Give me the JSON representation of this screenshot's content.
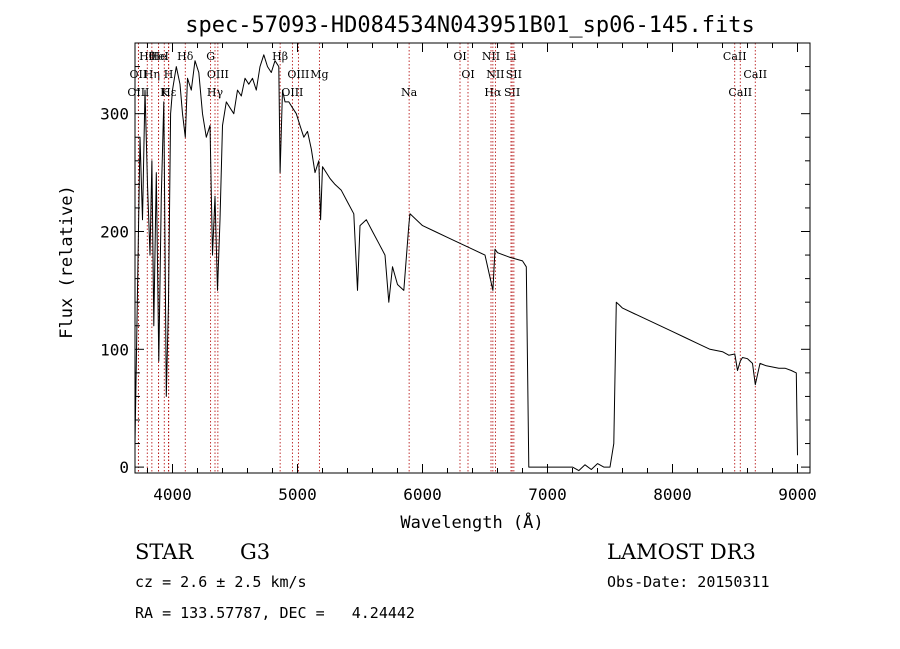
{
  "chart_data": {
    "type": "line",
    "title": "spec-57093-HD084534N043951B01_sp06-145.fits",
    "xlabel": "Wavelength (Å)",
    "ylabel": "Flux (relative)",
    "xlim": [
      3700,
      9100
    ],
    "ylim": [
      -5,
      360
    ],
    "x_ticks": [
      4000,
      5000,
      6000,
      7000,
      8000,
      9000
    ],
    "y_ticks": [
      0,
      100,
      200,
      300
    ],
    "colors": {
      "spectrum": "#000000",
      "line_markers": "#b00000",
      "axes": "#000000"
    },
    "spectrum": {
      "x": [
        3700,
        3720,
        3740,
        3760,
        3780,
        3800,
        3820,
        3835,
        3850,
        3870,
        3890,
        3910,
        3930,
        3950,
        3968,
        3985,
        4000,
        4030,
        4060,
        4080,
        4102,
        4120,
        4150,
        4180,
        4210,
        4240,
        4270,
        4300,
        4320,
        4340,
        4360,
        4380,
        4400,
        4430,
        4460,
        4490,
        4520,
        4550,
        4580,
        4610,
        4640,
        4670,
        4700,
        4730,
        4760,
        4790,
        4820,
        4850,
        4861,
        4880,
        4900,
        4930,
        4960,
        4990,
        5020,
        5050,
        5080,
        5110,
        5140,
        5170,
        5185,
        5200,
        5230,
        5260,
        5300,
        5350,
        5400,
        5450,
        5480,
        5500,
        5550,
        5600,
        5650,
        5700,
        5730,
        5760,
        5800,
        5850,
        5890,
        5900,
        5950,
        6000,
        6100,
        6200,
        6300,
        6400,
        6500,
        6563,
        6580,
        6600,
        6700,
        6800,
        6830,
        6850,
        6900,
        7000,
        7100,
        7200,
        7250,
        7300,
        7350,
        7400,
        7450,
        7500,
        7530,
        7550,
        7570,
        7600,
        7700,
        7800,
        7900,
        8000,
        8100,
        8200,
        8300,
        8400,
        8450,
        8498,
        8520,
        8542,
        8560,
        8600,
        8640,
        8662,
        8700,
        8750,
        8800,
        8850,
        8900,
        8950,
        8990,
        9000
      ],
      "y": [
        20,
        150,
        280,
        210,
        320,
        240,
        180,
        260,
        120,
        250,
        90,
        230,
        310,
        60,
        140,
        300,
        320,
        340,
        325,
        300,
        280,
        330,
        320,
        345,
        335,
        300,
        280,
        290,
        180,
        230,
        150,
        210,
        290,
        310,
        305,
        300,
        320,
        315,
        330,
        325,
        330,
        320,
        340,
        350,
        340,
        335,
        345,
        340,
        250,
        320,
        310,
        310,
        305,
        300,
        290,
        280,
        285,
        270,
        250,
        260,
        210,
        255,
        250,
        245,
        240,
        235,
        225,
        215,
        150,
        205,
        210,
        200,
        190,
        180,
        140,
        170,
        155,
        150,
        205,
        215,
        210,
        205,
        200,
        195,
        190,
        185,
        180,
        150,
        185,
        182,
        178,
        175,
        170,
        0,
        0,
        0,
        0,
        0,
        -3,
        2,
        -2,
        3,
        0,
        0,
        20,
        140,
        138,
        135,
        130,
        125,
        120,
        115,
        110,
        105,
        100,
        98,
        95,
        96,
        82,
        90,
        93,
        92,
        88,
        70,
        88,
        86,
        85,
        84,
        84,
        82,
        80,
        10
      ]
    },
    "line_markers": [
      {
        "label": "Hθ",
        "wavelength": 3798
      },
      {
        "label": "OII",
        "wavelength": 3727
      },
      {
        "label": "OIII",
        "wavelength": 3727
      },
      {
        "label": "He",
        "wavelength": 3889
      },
      {
        "label": "Hη",
        "wavelength": 3835
      },
      {
        "label": "K",
        "wavelength": 3934
      },
      {
        "label": "HeI",
        "wavelength": 3889
      },
      {
        "label": "H",
        "wavelength": 3968
      },
      {
        "label": "Hε",
        "wavelength": 3970
      },
      {
        "label": "Hδ",
        "wavelength": 4102
      },
      {
        "label": "OIII",
        "wavelength": 4363
      },
      {
        "label": "Hγ",
        "wavelength": 4340
      },
      {
        "label": "G",
        "wavelength": 4305
      },
      {
        "label": "OIII",
        "wavelength": 5007
      },
      {
        "label": "OIII",
        "wavelength": 4959
      },
      {
        "label": "Hβ",
        "wavelength": 4861
      },
      {
        "label": "Mg",
        "wavelength": 5175
      },
      {
        "label": "Na",
        "wavelength": 5893
      },
      {
        "label": "OI",
        "wavelength": 6300
      },
      {
        "label": "OI",
        "wavelength": 6364
      },
      {
        "label": "Hα",
        "wavelength": 6563
      },
      {
        "label": "NII",
        "wavelength": 6548
      },
      {
        "label": "NII",
        "wavelength": 6583
      },
      {
        "label": "SII",
        "wavelength": 6717
      },
      {
        "label": "Li",
        "wavelength": 6708
      },
      {
        "label": "SII",
        "wavelength": 6731
      },
      {
        "label": "CaII",
        "wavelength": 8542
      },
      {
        "label": "CaII",
        "wavelength": 8498
      },
      {
        "label": "CaII",
        "wavelength": 8662
      }
    ]
  },
  "info": {
    "object_class": "STAR",
    "subclass": "G3",
    "survey": "LAMOST DR3",
    "cz": "cz = 2.6 ± 2.5 km/s",
    "obs_date": "Obs-Date: 20150311",
    "coords": "RA = 133.57787, DEC =   4.24442"
  }
}
